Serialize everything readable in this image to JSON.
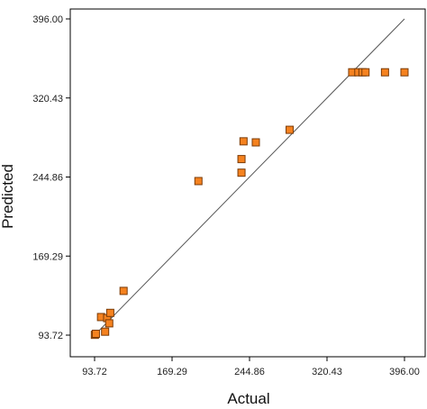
{
  "chart_data": {
    "type": "scatter",
    "title": "",
    "xlabel": "Actual",
    "ylabel": "Predicted",
    "xlim": [
      93.72,
      396.0
    ],
    "ylim": [
      93.72,
      396.0
    ],
    "xticks": [
      "93.72",
      "169.29",
      "244.86",
      "320.43",
      "396.00"
    ],
    "yticks": [
      "93.72",
      "169.29",
      "244.86",
      "320.43",
      "396.00"
    ],
    "reference_line": {
      "from": [
        93.72,
        93.72
      ],
      "to": [
        396.0,
        396.0
      ]
    },
    "grid": false,
    "marker_color": "#f5821f",
    "marker_edge_color": "#7a3b08",
    "points": [
      {
        "x": 94,
        "y": 94
      },
      {
        "x": 95,
        "y": 95
      },
      {
        "x": 100,
        "y": 111
      },
      {
        "x": 104,
        "y": 97
      },
      {
        "x": 106,
        "y": 110
      },
      {
        "x": 108,
        "y": 105
      },
      {
        "x": 109,
        "y": 115
      },
      {
        "x": 122,
        "y": 136
      },
      {
        "x": 195,
        "y": 241
      },
      {
        "x": 237,
        "y": 249
      },
      {
        "x": 237,
        "y": 262
      },
      {
        "x": 239,
        "y": 279
      },
      {
        "x": 251,
        "y": 278
      },
      {
        "x": 284,
        "y": 290
      },
      {
        "x": 345,
        "y": 345
      },
      {
        "x": 351,
        "y": 345
      },
      {
        "x": 355,
        "y": 345
      },
      {
        "x": 358,
        "y": 345
      },
      {
        "x": 377,
        "y": 345
      },
      {
        "x": 396,
        "y": 345
      }
    ]
  }
}
